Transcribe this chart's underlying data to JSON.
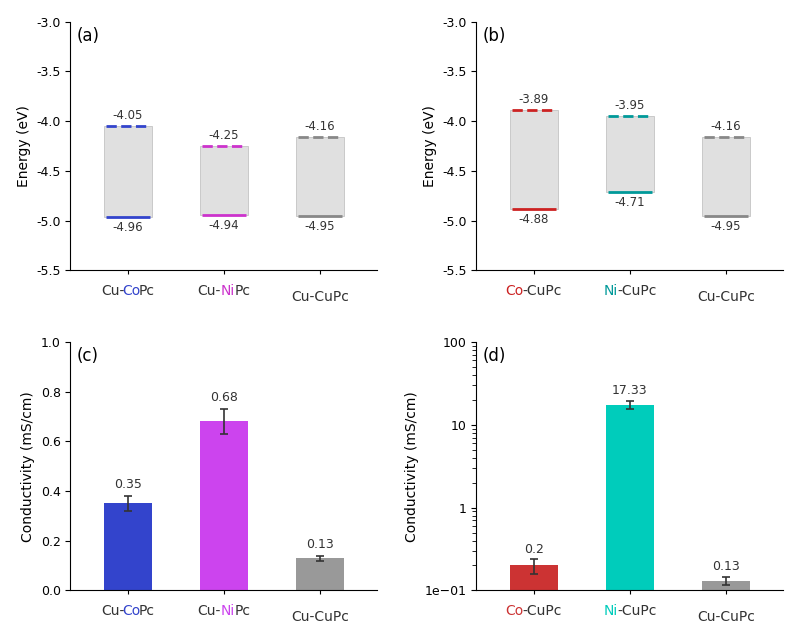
{
  "panel_a": {
    "label": "(a)",
    "bars": [
      {
        "x": 0,
        "lumo": -4.05,
        "homo": -4.96,
        "color": "#3344cc",
        "label_parts": [
          [
            "Cu-",
            "#333333"
          ],
          [
            "Co",
            "#3344cc"
          ],
          [
            "Pc",
            "#333333"
          ]
        ]
      },
      {
        "x": 1,
        "lumo": -4.25,
        "homo": -4.94,
        "color": "#cc33cc",
        "label_parts": [
          [
            "Cu-",
            "#333333"
          ],
          [
            "Ni",
            "#cc33cc"
          ],
          [
            "Pc",
            "#333333"
          ]
        ]
      },
      {
        "x": 2,
        "lumo": -4.16,
        "homo": -4.95,
        "color": "#888888",
        "label_parts": [
          [
            "Cu-CuPc",
            "#333333"
          ]
        ]
      }
    ],
    "ylim": [
      -5.5,
      -3.0
    ],
    "yticks": [
      -5.5,
      -5.0,
      -4.5,
      -4.0,
      -3.5,
      -3.0
    ],
    "ylabel": "Energy (eV)"
  },
  "panel_b": {
    "label": "(b)",
    "bars": [
      {
        "x": 0,
        "lumo": -3.89,
        "homo": -4.88,
        "color": "#cc2222",
        "label_parts": [
          [
            "Co",
            "#cc2222"
          ],
          [
            "-CuPc",
            "#333333"
          ]
        ]
      },
      {
        "x": 1,
        "lumo": -3.95,
        "homo": -4.71,
        "color": "#009999",
        "label_parts": [
          [
            "Ni",
            "#009999"
          ],
          [
            "-CuPc",
            "#333333"
          ]
        ]
      },
      {
        "x": 2,
        "lumo": -4.16,
        "homo": -4.95,
        "color": "#888888",
        "label_parts": [
          [
            "Cu-CuPc",
            "#333333"
          ]
        ]
      }
    ],
    "ylim": [
      -5.5,
      -3.0
    ],
    "yticks": [
      -5.5,
      -5.0,
      -4.5,
      -4.0,
      -3.5,
      -3.0
    ],
    "ylabel": "Energy (eV)"
  },
  "panel_c": {
    "label": "(c)",
    "bars": [
      {
        "x": 0,
        "value": 0.35,
        "err": 0.03,
        "color": "#3344cc",
        "label_parts": [
          [
            "Cu-",
            "#333333"
          ],
          [
            "Co",
            "#3344cc"
          ],
          [
            "Pc",
            "#333333"
          ]
        ]
      },
      {
        "x": 1,
        "value": 0.68,
        "err": 0.05,
        "color": "#cc44ee",
        "label_parts": [
          [
            "Cu-",
            "#333333"
          ],
          [
            "Ni",
            "#cc44ee"
          ],
          [
            "Pc",
            "#333333"
          ]
        ]
      },
      {
        "x": 2,
        "value": 0.13,
        "err": 0.01,
        "color": "#999999",
        "label_parts": [
          [
            "Cu-CuPc",
            "#333333"
          ]
        ]
      }
    ],
    "ylim": [
      0,
      1.0
    ],
    "yticks": [
      0.0,
      0.2,
      0.4,
      0.6,
      0.8,
      1.0
    ],
    "ylabel": "Conductivity (mS/cm)"
  },
  "panel_d": {
    "label": "(d)",
    "bars": [
      {
        "x": 0,
        "value": 0.2,
        "err": 0.04,
        "color": "#cc3333",
        "label_parts": [
          [
            "Co",
            "#cc3333"
          ],
          [
            "-CuPc",
            "#333333"
          ]
        ]
      },
      {
        "x": 1,
        "value": 17.33,
        "err": 2.0,
        "color": "#00ccbb",
        "label_parts": [
          [
            "Ni",
            "#00ccbb"
          ],
          [
            "-CuPc",
            "#333333"
          ]
        ]
      },
      {
        "x": 2,
        "value": 0.13,
        "err": 0.015,
        "color": "#999999",
        "label_parts": [
          [
            "Cu-CuPc",
            "#333333"
          ]
        ]
      }
    ],
    "ylim": [
      0.1,
      100
    ],
    "ylabel": "Conductivity (mS/cm)",
    "log": true
  },
  "bar_width": 0.5,
  "box_color": "#e0e0e0",
  "fig_bg": "#ffffff",
  "label_fontsize": 10,
  "panel_label_fontsize": 12
}
